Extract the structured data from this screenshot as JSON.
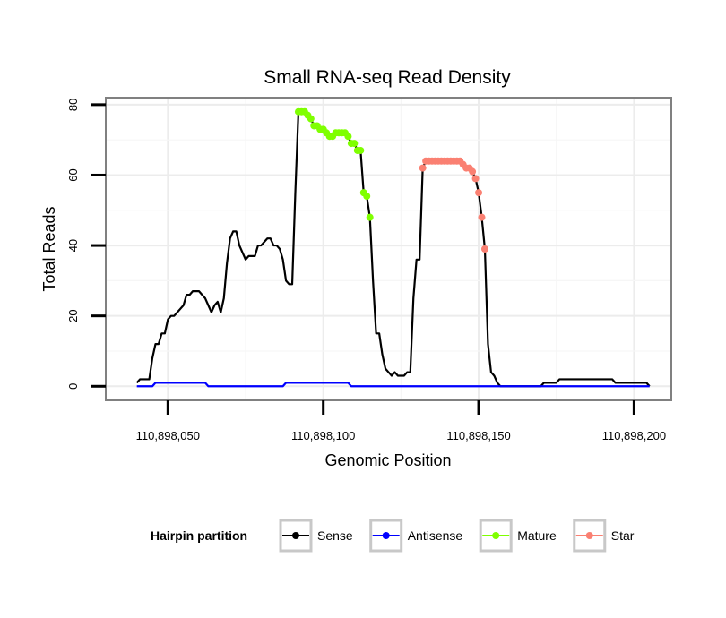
{
  "chart_data": {
    "type": "line",
    "title": "Small RNA-seq Read Density",
    "xlabel": "Genomic Position",
    "ylabel": "Total Reads",
    "xlim": [
      110898030,
      110898212
    ],
    "ylim": [
      -4,
      82
    ],
    "x_ticks": [
      110898050,
      110898100,
      110898150,
      110898200
    ],
    "x_tick_labels": [
      "110,898,050",
      "110,898,100",
      "110,898,150",
      "110,898,200"
    ],
    "y_ticks": [
      0,
      20,
      40,
      60,
      80
    ],
    "y_tick_labels": [
      "0",
      "20",
      "40",
      "60",
      "80"
    ],
    "grid": true,
    "legend_title": "Hairpin partition",
    "legend_position": "bottom",
    "series": [
      {
        "name": "Sense",
        "color": "#000000",
        "style": "line",
        "points": [
          [
            110898040,
            1
          ],
          [
            110898041,
            2
          ],
          [
            110898042,
            2
          ],
          [
            110898043,
            2
          ],
          [
            110898044,
            2
          ],
          [
            110898045,
            8
          ],
          [
            110898046,
            12
          ],
          [
            110898047,
            12
          ],
          [
            110898048,
            15
          ],
          [
            110898049,
            15
          ],
          [
            110898050,
            19
          ],
          [
            110898051,
            20
          ],
          [
            110898052,
            20
          ],
          [
            110898053,
            21
          ],
          [
            110898054,
            22
          ],
          [
            110898055,
            23
          ],
          [
            110898056,
            26
          ],
          [
            110898057,
            26
          ],
          [
            110898058,
            27
          ],
          [
            110898059,
            27
          ],
          [
            110898060,
            27
          ],
          [
            110898061,
            26
          ],
          [
            110898062,
            25
          ],
          [
            110898063,
            23
          ],
          [
            110898064,
            21
          ],
          [
            110898065,
            23
          ],
          [
            110898066,
            24
          ],
          [
            110898067,
            21
          ],
          [
            110898068,
            25
          ],
          [
            110898069,
            35
          ],
          [
            110898070,
            42
          ],
          [
            110898071,
            44
          ],
          [
            110898072,
            44
          ],
          [
            110898073,
            40
          ],
          [
            110898074,
            38
          ],
          [
            110898075,
            36
          ],
          [
            110898076,
            37
          ],
          [
            110898077,
            37
          ],
          [
            110898078,
            37
          ],
          [
            110898079,
            40
          ],
          [
            110898080,
            40
          ],
          [
            110898081,
            41
          ],
          [
            110898082,
            42
          ],
          [
            110898083,
            42
          ],
          [
            110898084,
            40
          ],
          [
            110898085,
            40
          ],
          [
            110898086,
            39
          ],
          [
            110898087,
            36
          ],
          [
            110898088,
            30
          ],
          [
            110898089,
            29
          ],
          [
            110898090,
            29
          ],
          [
            110898091,
            55
          ],
          [
            110898092,
            78
          ],
          [
            110898093,
            78
          ],
          [
            110898094,
            78
          ],
          [
            110898095,
            77
          ],
          [
            110898096,
            76
          ],
          [
            110898097,
            74
          ],
          [
            110898098,
            74
          ],
          [
            110898099,
            73
          ],
          [
            110898100,
            73
          ],
          [
            110898101,
            72
          ],
          [
            110898102,
            71
          ],
          [
            110898103,
            71
          ],
          [
            110898104,
            72
          ],
          [
            110898105,
            72
          ],
          [
            110898106,
            72
          ],
          [
            110898107,
            72
          ],
          [
            110898108,
            71
          ],
          [
            110898109,
            69
          ],
          [
            110898110,
            69
          ],
          [
            110898111,
            67
          ],
          [
            110898112,
            67
          ],
          [
            110898113,
            55
          ],
          [
            110898114,
            54
          ],
          [
            110898115,
            48
          ],
          [
            110898116,
            30
          ],
          [
            110898117,
            15
          ],
          [
            110898118,
            15
          ],
          [
            110898119,
            9
          ],
          [
            110898120,
            5
          ],
          [
            110898121,
            4
          ],
          [
            110898122,
            3
          ],
          [
            110898123,
            4
          ],
          [
            110898124,
            3
          ],
          [
            110898125,
            3
          ],
          [
            110898126,
            3
          ],
          [
            110898127,
            4
          ],
          [
            110898128,
            4
          ],
          [
            110898129,
            25
          ],
          [
            110898130,
            36
          ],
          [
            110898131,
            36
          ],
          [
            110898132,
            62
          ],
          [
            110898133,
            64
          ],
          [
            110898134,
            64
          ],
          [
            110898135,
            64
          ],
          [
            110898136,
            64
          ],
          [
            110898137,
            64
          ],
          [
            110898138,
            64
          ],
          [
            110898139,
            64
          ],
          [
            110898140,
            64
          ],
          [
            110898141,
            64
          ],
          [
            110898142,
            64
          ],
          [
            110898143,
            64
          ],
          [
            110898144,
            64
          ],
          [
            110898145,
            63
          ],
          [
            110898146,
            62
          ],
          [
            110898147,
            62
          ],
          [
            110898148,
            61
          ],
          [
            110898149,
            59
          ],
          [
            110898150,
            55
          ],
          [
            110898151,
            48
          ],
          [
            110898152,
            39
          ],
          [
            110898153,
            12
          ],
          [
            110898154,
            4
          ],
          [
            110898155,
            3
          ],
          [
            110898156,
            1
          ],
          [
            110898157,
            0
          ],
          [
            110898158,
            0
          ],
          [
            110898160,
            0
          ],
          [
            110898165,
            0
          ],
          [
            110898170,
            0
          ],
          [
            110898171,
            1
          ],
          [
            110898172,
            1
          ],
          [
            110898175,
            1
          ],
          [
            110898176,
            2
          ],
          [
            110898180,
            2
          ],
          [
            110898185,
            2
          ],
          [
            110898190,
            2
          ],
          [
            110898193,
            2
          ],
          [
            110898194,
            1
          ],
          [
            110898200,
            1
          ],
          [
            110898204,
            1
          ],
          [
            110898205,
            0
          ]
        ]
      },
      {
        "name": "Antisense",
        "color": "#0000ff",
        "style": "line",
        "points": [
          [
            110898040,
            0
          ],
          [
            110898045,
            0
          ],
          [
            110898046,
            1
          ],
          [
            110898060,
            1
          ],
          [
            110898062,
            1
          ],
          [
            110898063,
            0
          ],
          [
            110898087,
            0
          ],
          [
            110898088,
            1
          ],
          [
            110898104,
            1
          ],
          [
            110898108,
            1
          ],
          [
            110898109,
            0
          ],
          [
            110898205,
            0
          ]
        ]
      },
      {
        "name": "Mature",
        "color": "#7fff00",
        "style": "points",
        "points": [
          [
            110898092,
            78
          ],
          [
            110898093,
            78
          ],
          [
            110898094,
            78
          ],
          [
            110898095,
            77
          ],
          [
            110898096,
            76
          ],
          [
            110898097,
            74
          ],
          [
            110898098,
            74
          ],
          [
            110898099,
            73
          ],
          [
            110898100,
            73
          ],
          [
            110898101,
            72
          ],
          [
            110898102,
            71
          ],
          [
            110898103,
            71
          ],
          [
            110898104,
            72
          ],
          [
            110898105,
            72
          ],
          [
            110898106,
            72
          ],
          [
            110898107,
            72
          ],
          [
            110898108,
            71
          ],
          [
            110898109,
            69
          ],
          [
            110898110,
            69
          ],
          [
            110898111,
            67
          ],
          [
            110898112,
            67
          ],
          [
            110898113,
            55
          ],
          [
            110898114,
            54
          ],
          [
            110898115,
            48
          ]
        ]
      },
      {
        "name": "Star",
        "color": "#fa8072",
        "style": "points",
        "points": [
          [
            110898132,
            62
          ],
          [
            110898133,
            64
          ],
          [
            110898134,
            64
          ],
          [
            110898135,
            64
          ],
          [
            110898136,
            64
          ],
          [
            110898137,
            64
          ],
          [
            110898138,
            64
          ],
          [
            110898139,
            64
          ],
          [
            110898140,
            64
          ],
          [
            110898141,
            64
          ],
          [
            110898142,
            64
          ],
          [
            110898143,
            64
          ],
          [
            110898144,
            64
          ],
          [
            110898145,
            63
          ],
          [
            110898146,
            62
          ],
          [
            110898147,
            62
          ],
          [
            110898148,
            61
          ],
          [
            110898149,
            59
          ],
          [
            110898150,
            55
          ],
          [
            110898151,
            48
          ],
          [
            110898152,
            39
          ]
        ]
      }
    ]
  }
}
